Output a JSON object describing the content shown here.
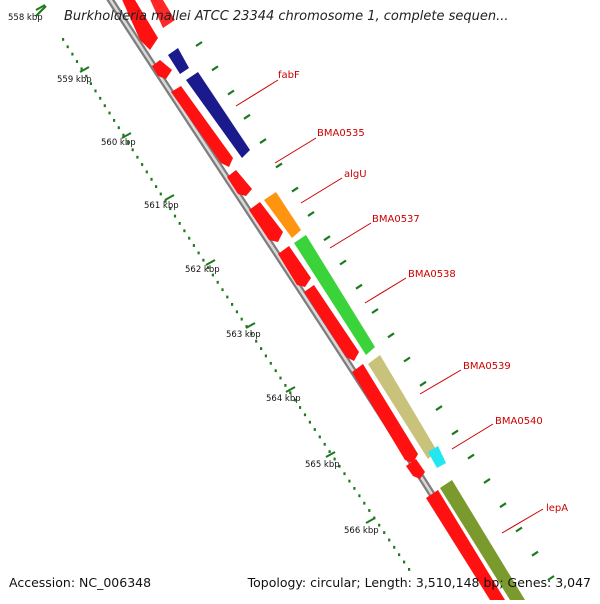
{
  "title": "Burkholderia mallei ATCC 23344 chromosome 1, complete sequen...",
  "footer": {
    "accession": "Accession: NC_006348",
    "topology": "Topology: circular; Length: 3,510,148 bp; Genes: 3,047"
  },
  "colors": {
    "backbone": "#8c8c8c",
    "ruler_tick": "#1e7a1e",
    "forward_dark": "#1a1a8c",
    "forward_orange": "#ff9411",
    "forward_green": "#3ad43a",
    "forward_khaki": "#c9c27a",
    "forward_cyan": "#22e6f0",
    "forward_olive": "#7a9a2e",
    "reverse_red": "#ff1111",
    "label_red": "#cc0000"
  },
  "ruler_labels": [
    "558 kbp",
    "559 kbp",
    "560 kbp",
    "561 kbp",
    "562 kbp",
    "563 kbp",
    "564 kbp",
    "565 kbp",
    "566 kbp"
  ],
  "gene_labels": [
    "fabF",
    "BMA0535",
    "algU",
    "BMA0537",
    "BMA0538",
    "BMA0539",
    "BMA0540",
    "lepA"
  ]
}
